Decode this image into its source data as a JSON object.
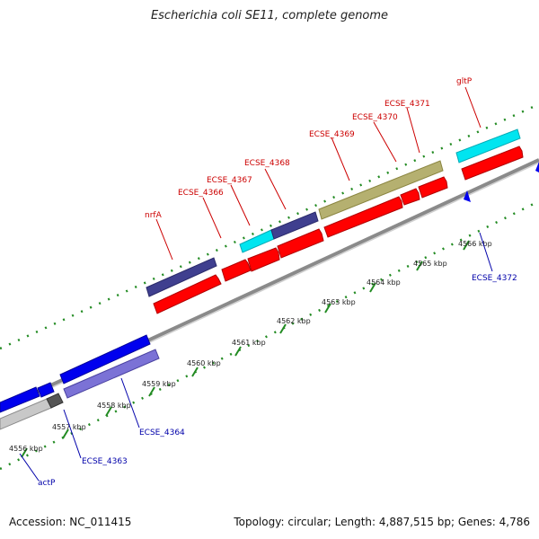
{
  "title": "Escherichia coli SE11, complete genome",
  "footer": {
    "accession": "Accession: NC_011415",
    "summary": "Topology: circular; Length: 4,887,515 bp; Genes: 4,786"
  },
  "colors": {
    "forward_red": "#ff0000",
    "label_red": "#cc0000",
    "label_blue": "#0000aa",
    "cyan": "#00e5f0",
    "navy": "#3f3f8f",
    "olive": "#b5b070",
    "blue": "#0000ee",
    "lavender": "#7b72d6",
    "grey": "#c8c8c8",
    "backbone": "#8a8a8a",
    "dots": "#228b22"
  },
  "scale_labels": [
    "4556 kbp",
    "4557 kbp",
    "4558 kbp",
    "4559 kbp",
    "4560 kbp",
    "4561 kbp",
    "4562 kbp",
    "4563 kbp",
    "4564 kbp",
    "4565 kbp",
    "4566 kbp"
  ],
  "gene_labels": {
    "nrfA": "nrfA",
    "ECSE_4366": "ECSE_4366",
    "ECSE_4367": "ECSE_4367",
    "ECSE_4368": "ECSE_4368",
    "ECSE_4369": "ECSE_4369",
    "ECSE_4370": "ECSE_4370",
    "ECSE_4371": "ECSE_4371",
    "gltP": "gltP",
    "ECSE_4372": "ECSE_4372",
    "ECSE_4364": "ECSE_4364",
    "ECSE_4363": "ECSE_4363",
    "actP": "actP"
  }
}
